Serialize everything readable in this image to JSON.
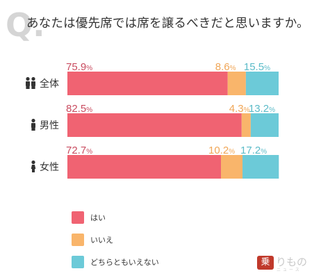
{
  "title": {
    "q_letter": "Q.",
    "text": "あなたは優先席では席を譲るべきだと思いますか。"
  },
  "colors": {
    "yes": "#f06372",
    "no": "#f9b56b",
    "neither": "#6ccad8",
    "q_mark": "#d5d5d5",
    "label_yes": "#c94c60",
    "label_no": "#f0a657",
    "label_neither": "#5bbbc8"
  },
  "chart_data": {
    "type": "bar",
    "orientation": "horizontal",
    "stacked": true,
    "categories": [
      "全体",
      "男性",
      "女性"
    ],
    "category_icons": [
      "two-people-icon",
      "man-icon",
      "woman-icon"
    ],
    "series": [
      {
        "name": "はい",
        "values": [
          75.9,
          82.5,
          72.7
        ]
      },
      {
        "name": "いいえ",
        "values": [
          8.6,
          4.3,
          10.2
        ]
      },
      {
        "name": "どちらともいえない",
        "values": [
          15.5,
          13.2,
          17.2
        ]
      }
    ],
    "value_unit": "%",
    "xlim": [
      0,
      100
    ],
    "grid": false,
    "legend": "bottom-left"
  },
  "logo": {
    "mark": "乗",
    "text": "りもの",
    "sub": "ニュース"
  }
}
